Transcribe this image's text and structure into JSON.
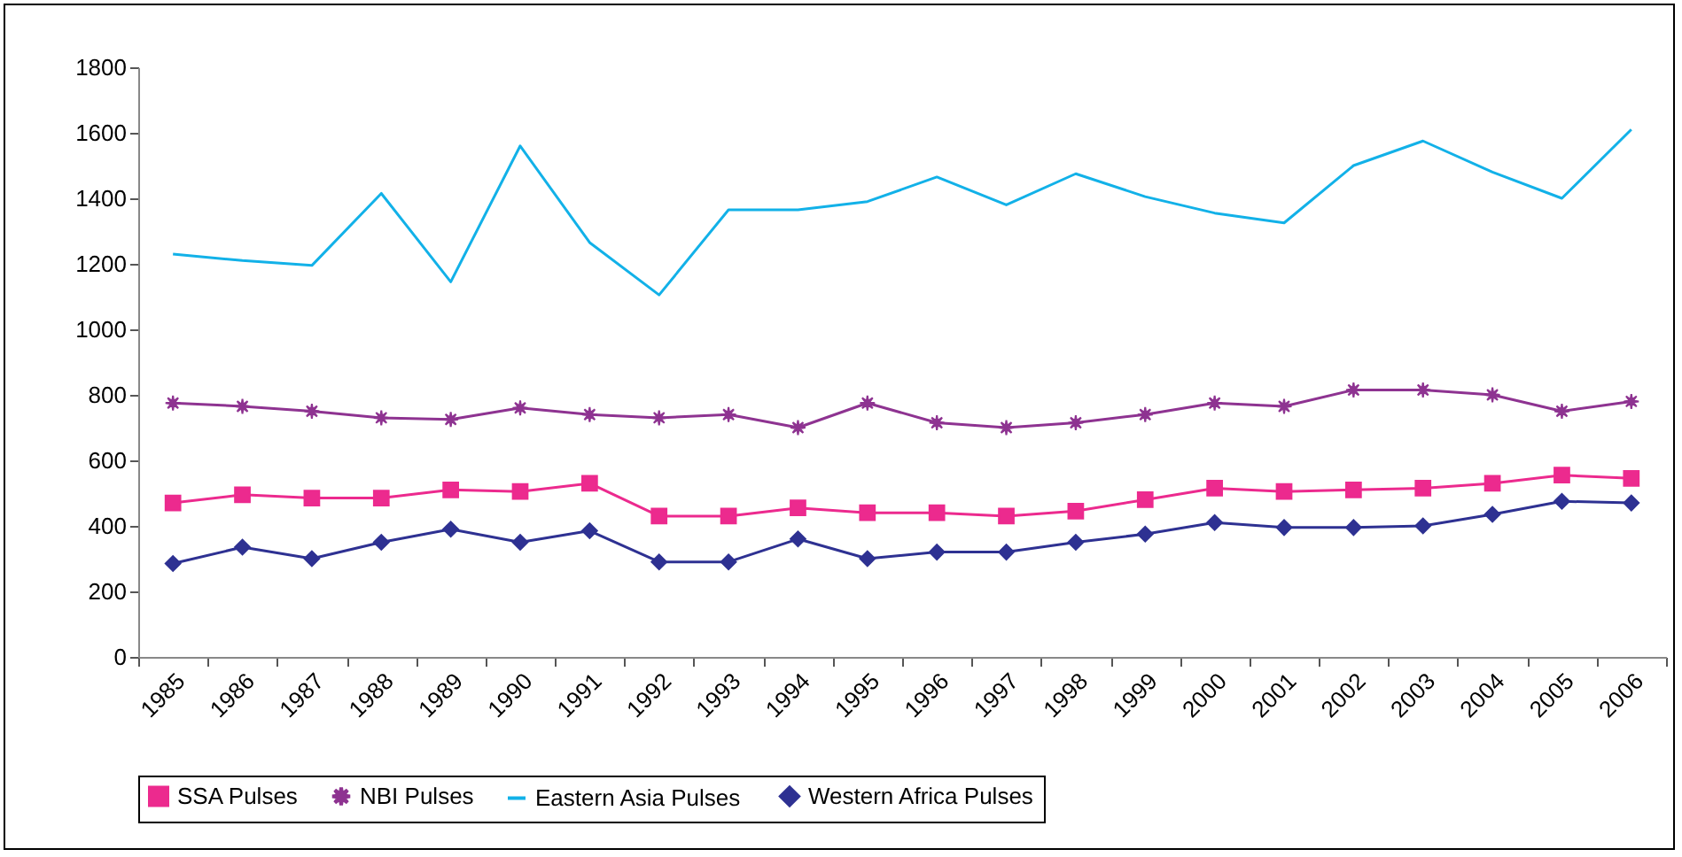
{
  "chart_data": {
    "type": "line",
    "categories": [
      "1985",
      "1986",
      "1987",
      "1988",
      "1989",
      "1990",
      "1991",
      "1992",
      "1993",
      "1994",
      "1995",
      "1996",
      "1997",
      "1998",
      "1999",
      "2000",
      "2001",
      "2002",
      "2003",
      "2004",
      "2005",
      "2006"
    ],
    "series": [
      {
        "name": "SSA Pulses",
        "color": "#ec2a8e",
        "marker": "square",
        "values": [
          470,
          495,
          485,
          485,
          510,
          505,
          530,
          430,
          430,
          455,
          440,
          440,
          430,
          445,
          480,
          515,
          505,
          510,
          515,
          530,
          555,
          545
        ]
      },
      {
        "name": "NBI Pulses",
        "color": "#8e3391",
        "marker": "star",
        "values": [
          775,
          765,
          750,
          730,
          725,
          760,
          740,
          730,
          740,
          700,
          775,
          715,
          700,
          715,
          740,
          775,
          765,
          815,
          815,
          800,
          750,
          780
        ]
      },
      {
        "name": "Eastern Asia  Pulses",
        "color": "#12b1e8",
        "marker": "none",
        "values": [
          1230,
          1210,
          1195,
          1415,
          1145,
          1560,
          1265,
          1105,
          1365,
          1365,
          1390,
          1465,
          1380,
          1475,
          1405,
          1355,
          1325,
          1500,
          1575,
          1480,
          1400,
          1610
        ]
      },
      {
        "name": "Western Africa Pulses",
        "color": "#2e3192",
        "marker": "diamond",
        "values": [
          285,
          335,
          300,
          350,
          390,
          350,
          385,
          290,
          290,
          360,
          300,
          320,
          320,
          350,
          375,
          410,
          395,
          395,
          400,
          435,
          475,
          470
        ]
      }
    ],
    "ylim": [
      0,
      1800
    ],
    "yticks": [
      0,
      200,
      400,
      600,
      800,
      1000,
      1200,
      1400,
      1600,
      1800
    ],
    "grid": false,
    "legend": "bottom"
  }
}
